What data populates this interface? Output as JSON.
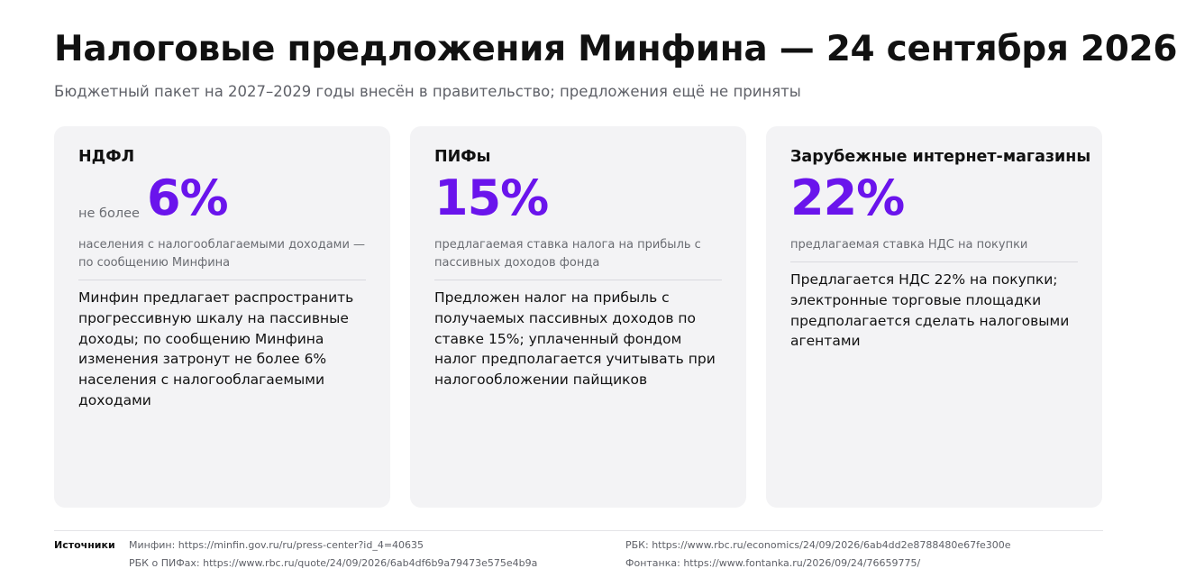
{
  "header": {
    "title": "Налоговые предложения Минфина — 24 сентября 2026",
    "subtitle": "Бюджетный пакет на 2027–2029 годы внесён в правительство; предложения ещё не приняты"
  },
  "cards": [
    {
      "title": "НДФЛ",
      "prefix": "не более",
      "value": "6%",
      "caption": "населения с налогооблагаемыми доходами — по сообщению Минфина",
      "text": "Минфин предлагает распространить прогрессивную шкалу на пассивные доходы; по сообщению Минфина изменения затронут не более 6% населения с налогооблагаемыми доходами"
    },
    {
      "title": "ПИФы",
      "prefix": "",
      "value": "15%",
      "caption": "предлагаемая ставка налога на прибыль с пассивных доходов фонда",
      "text": "Предложен налог на прибыль с получаемых пассивных доходов по ставке 15%; уплаченный фондом налог предполагается учитывать при налогообложении пайщиков"
    },
    {
      "title": "Зарубежные интернет-магазины",
      "prefix": "",
      "value": "22%",
      "caption": "предлагаемая ставка НДС на покупки",
      "text": "Предлагается НДС 22% на покупки; электронные торговые площадки предполагается сделать налоговыми агентами"
    }
  ],
  "sources": {
    "label": "Источники",
    "items": [
      "Минфин: https://minfin.gov.ru/ru/press-center?id_4=40635",
      "РБК о ПИФах: https://www.rbc.ru/quote/24/09/2026/6ab4df6b9a79473e575e4b9a",
      "РБК: https://www.rbc.ru/economics/24/09/2026/6ab4dd2e8788480e67fe300e",
      "Фонтанка: https://www.fontanka.ru/2026/09/24/76659775/"
    ]
  },
  "colors": {
    "accent": "#6a14ec",
    "card_bg": "#f3f3f5",
    "muted_text": "#6a6c72"
  }
}
